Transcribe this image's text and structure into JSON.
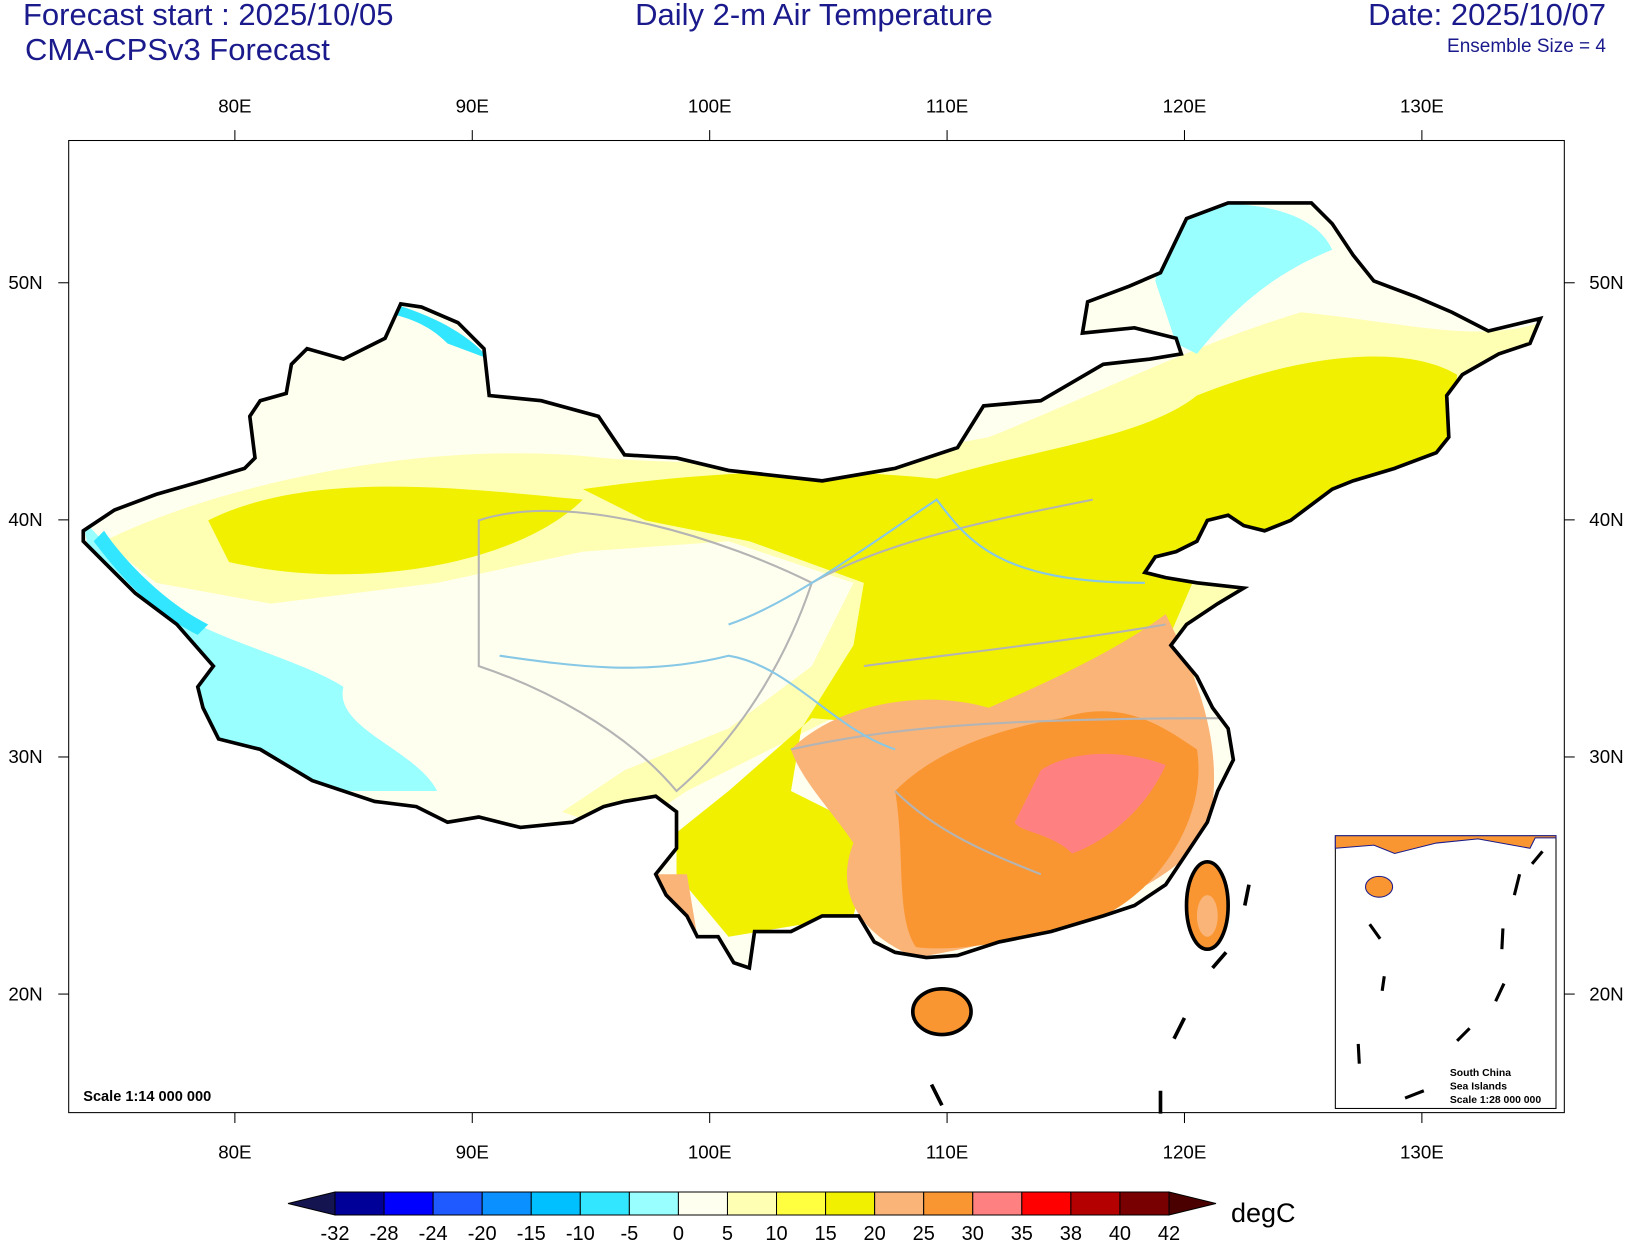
{
  "header": {
    "left_title": "Forecast start : 2025/10/05",
    "left_subtitle": "CMA-CPSv3 Forecast",
    "center_title": "Daily 2-m Air Temperature",
    "right_title": "Date: 2025/10/07",
    "right_subtitle": "Ensemble Size = 4"
  },
  "map": {
    "lon_range": [
      73,
      136
    ],
    "lat_range": [
      15,
      56
    ],
    "lon_ticks": [
      {
        "value": 80,
        "label": "80E"
      },
      {
        "value": 90,
        "label": "90E"
      },
      {
        "value": 100,
        "label": "100E"
      },
      {
        "value": 110,
        "label": "110E"
      },
      {
        "value": 120,
        "label": "120E"
      },
      {
        "value": 130,
        "label": "130E"
      }
    ],
    "lat_ticks": [
      {
        "value": 20,
        "label": "20N"
      },
      {
        "value": 30,
        "label": "30N"
      },
      {
        "value": 40,
        "label": "40N"
      },
      {
        "value": 50,
        "label": "50N"
      }
    ],
    "scale_label": "Scale 1:14 000 000",
    "inset_lines": [
      "South China",
      "Sea Islands",
      "Scale 1:28 000 000"
    ]
  },
  "colorbar": {
    "levels": [
      -32,
      -28,
      -24,
      -20,
      -15,
      -10,
      -5,
      0,
      5,
      10,
      15,
      20,
      25,
      30,
      35,
      38,
      40,
      42
    ],
    "colors": [
      "#141450",
      "#000099",
      "#0000ff",
      "#1e5aff",
      "#0a90ff",
      "#00c0ff",
      "#33e6ff",
      "#99ffff",
      "#fffff0",
      "#ffffb4",
      "#ffff40",
      "#f0f000",
      "#fab478",
      "#fa9632",
      "#ff8080",
      "#ff0000",
      "#b40000",
      "#780000",
      "#4b0000"
    ],
    "unit": "degC"
  }
}
